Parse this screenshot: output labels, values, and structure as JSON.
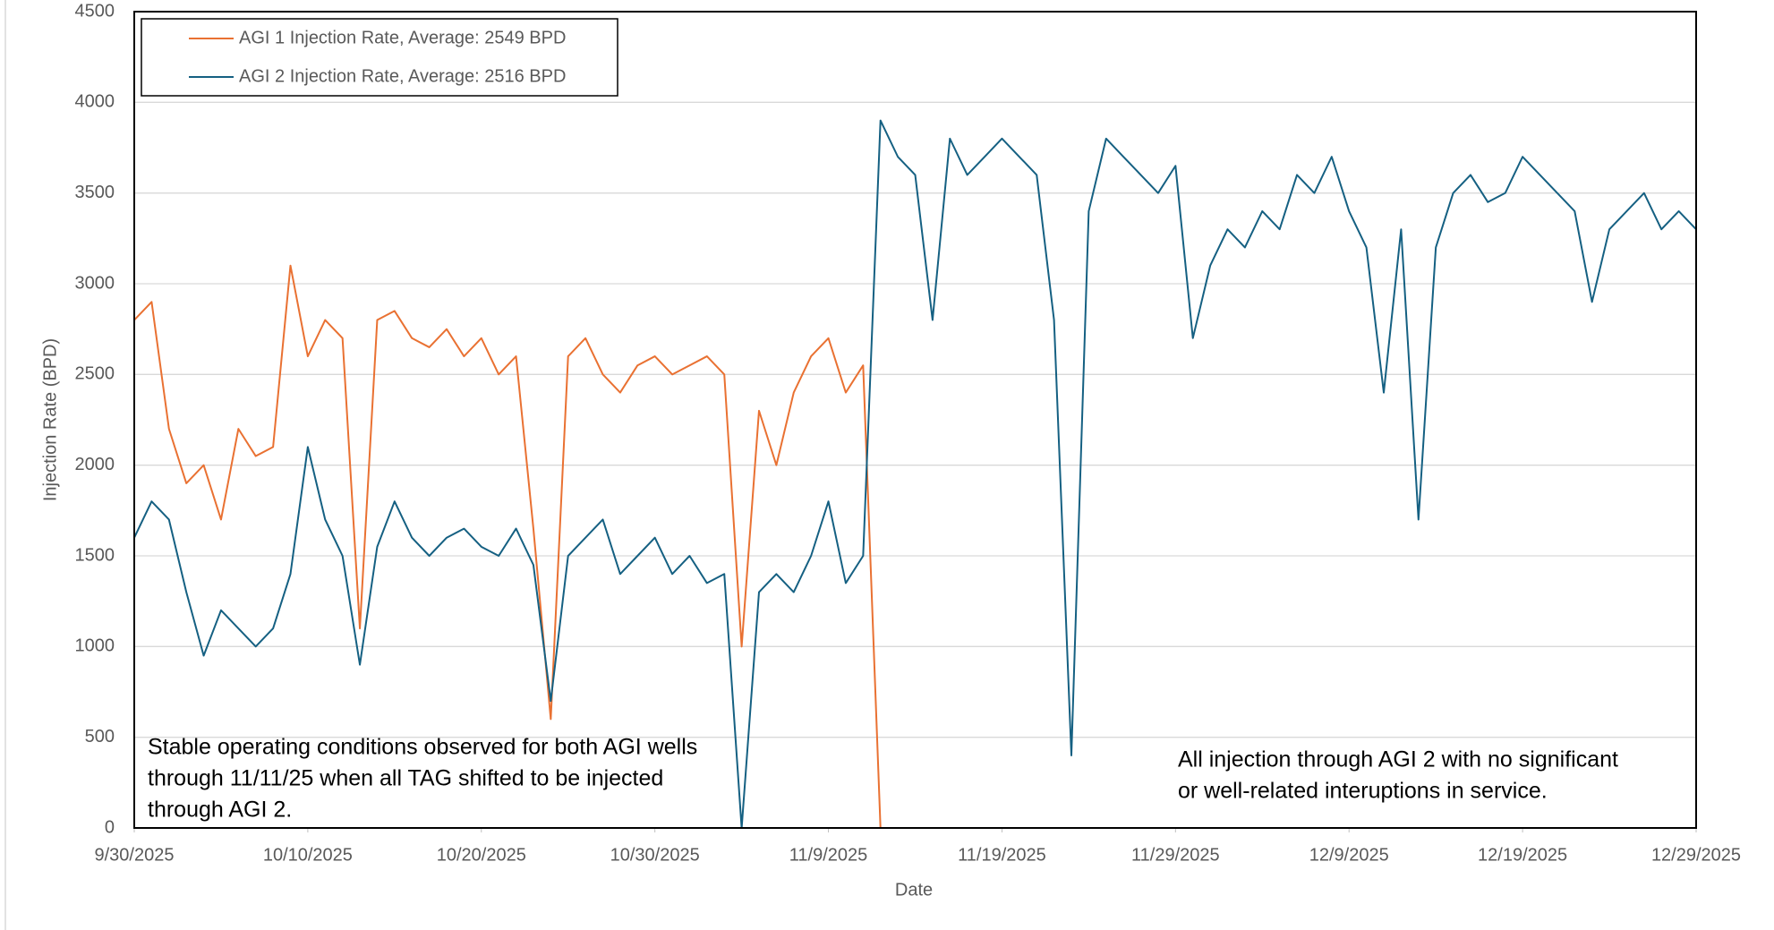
{
  "chart_data": {
    "type": "line",
    "y_label": "Injection Rate (BPD)",
    "x_label": "Date",
    "xlim": [
      "9/30/2025",
      "12/29/2025"
    ],
    "xticks": [
      "9/30/2025",
      "10/10/2025",
      "10/20/2025",
      "10/30/2025",
      "11/9/2025",
      "11/19/2025",
      "11/29/2025",
      "12/9/2025",
      "12/19/2025",
      "12/29/2025"
    ],
    "ylim": [
      0,
      4500
    ],
    "yticks": [
      0,
      500,
      1000,
      1500,
      2000,
      2500,
      3000,
      3500,
      4000,
      4500
    ],
    "grid": true,
    "legend": "top-left",
    "x": [
      "9/30/2025",
      "10/1/2025",
      "10/2/2025",
      "10/3/2025",
      "10/4/2025",
      "10/5/2025",
      "10/6/2025",
      "10/7/2025",
      "10/8/2025",
      "10/9/2025",
      "10/10/2025",
      "10/11/2025",
      "10/12/2025",
      "10/13/2025",
      "10/14/2025",
      "10/15/2025",
      "10/16/2025",
      "10/17/2025",
      "10/18/2025",
      "10/19/2025",
      "10/20/2025",
      "10/21/2025",
      "10/22/2025",
      "10/23/2025",
      "10/24/2025",
      "10/25/2025",
      "10/26/2025",
      "10/27/2025",
      "10/28/2025",
      "10/29/2025",
      "10/30/2025",
      "10/31/2025",
      "11/1/2025",
      "11/2/2025",
      "11/3/2025",
      "11/4/2025",
      "11/5/2025",
      "11/6/2025",
      "11/7/2025",
      "11/8/2025",
      "11/9/2025",
      "11/10/2025",
      "11/11/2025",
      "11/12/2025",
      "11/13/2025",
      "11/14/2025",
      "11/15/2025",
      "11/16/2025",
      "11/17/2025",
      "11/18/2025",
      "11/19/2025",
      "11/20/2025",
      "11/21/2025",
      "11/22/2025",
      "11/23/2025",
      "11/24/2025",
      "11/25/2025",
      "11/26/2025",
      "11/27/2025",
      "11/28/2025",
      "11/29/2025",
      "11/30/2025",
      "12/1/2025",
      "12/2/2025",
      "12/3/2025",
      "12/4/2025",
      "12/5/2025",
      "12/6/2025",
      "12/7/2025",
      "12/8/2025",
      "12/9/2025",
      "12/10/2025",
      "12/11/2025",
      "12/12/2025",
      "12/13/2025",
      "12/14/2025",
      "12/15/2025",
      "12/16/2025",
      "12/17/2025",
      "12/18/2025",
      "12/19/2025",
      "12/20/2025",
      "12/21/2025",
      "12/22/2025",
      "12/23/2025",
      "12/24/2025",
      "12/25/2025",
      "12/26/2025",
      "12/27/2025",
      "12/28/2025",
      "12/29/2025"
    ],
    "series": [
      {
        "name": "AGI 1 Injection Rate, Average: 2549 BPD",
        "color": "#e97132",
        "values": [
          2800,
          2900,
          2200,
          1900,
          2000,
          1700,
          2200,
          2050,
          2100,
          3100,
          2600,
          2800,
          2700,
          1100,
          2800,
          2850,
          2700,
          2650,
          2750,
          2600,
          2700,
          2500,
          2600,
          1650,
          600,
          2600,
          2700,
          2500,
          2400,
          2550,
          2600,
          2500,
          2550,
          2600,
          2500,
          1000,
          2300,
          2000,
          2400,
          2600,
          2700,
          2400,
          2550,
          0,
          0,
          0,
          0,
          0,
          0,
          0,
          0,
          0,
          0,
          0,
          0,
          0,
          0,
          0,
          0,
          0,
          0,
          0,
          0,
          0,
          0,
          0,
          0,
          0,
          0,
          0,
          0,
          0,
          0,
          0,
          0,
          0,
          0,
          0,
          0,
          0,
          0,
          0,
          0,
          0,
          0,
          0,
          0,
          0,
          0,
          0,
          0
        ]
      },
      {
        "name": "AGI 2 Injection Rate, Average: 2516 BPD",
        "color": "#156082",
        "values": [
          1600,
          1800,
          1700,
          1300,
          950,
          1200,
          1100,
          1000,
          1100,
          1400,
          2100,
          1700,
          1500,
          900,
          1550,
          1800,
          1600,
          1500,
          1600,
          1650,
          1550,
          1500,
          1650,
          1450,
          700,
          1500,
          1600,
          1700,
          1400,
          1500,
          1600,
          1400,
          1500,
          1350,
          1400,
          0,
          1300,
          1400,
          1300,
          1500,
          1800,
          1350,
          1500,
          3900,
          3700,
          3600,
          2800,
          3800,
          3600,
          3700,
          3800,
          3700,
          3600,
          2800,
          400,
          3400,
          3800,
          3700,
          3600,
          3500,
          3650,
          2700,
          3100,
          3300,
          3200,
          3400,
          3300,
          3600,
          3500,
          3700,
          3400,
          3200,
          2400,
          3300,
          1700,
          3200,
          3500,
          3600,
          3450,
          3500,
          3700,
          3600,
          3500,
          3400,
          2900,
          3300,
          3400,
          3500,
          3300,
          3400,
          3300
        ]
      }
    ],
    "annotations": [
      {
        "lines": [
          "Stable operating conditions observed for both AGI wells",
          "through 11/11/25 when all TAG shifted to be injected",
          "through AGI 2."
        ]
      },
      {
        "lines": [
          "All injection through AGI 2 with no significant",
          "or well-related interuptions in service."
        ]
      }
    ]
  }
}
